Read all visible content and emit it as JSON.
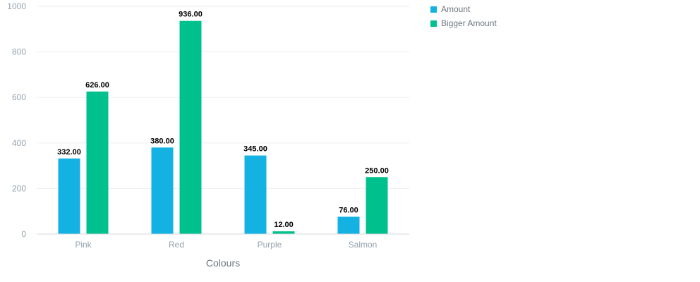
{
  "chart_data": {
    "type": "bar",
    "categories": [
      "Pink",
      "Red",
      "Purple",
      "Salmon"
    ],
    "series": [
      {
        "name": "Amount",
        "color": "#14b2e2",
        "values": [
          332,
          380,
          345,
          76
        ],
        "labels": [
          "332.00",
          "380.00",
          "345.00",
          "76.00"
        ]
      },
      {
        "name": "Bigger Amount",
        "color": "#00c18d",
        "values": [
          626,
          936,
          12,
          250
        ],
        "labels": [
          "626.00",
          "936.00",
          "12.00",
          "250.00"
        ]
      }
    ],
    "xlabel": "Colours",
    "ylabel": "",
    "ylim": [
      0,
      1000
    ],
    "yticks": [
      0,
      200,
      400,
      600,
      800,
      1000
    ],
    "grid": true,
    "legend_position": "top-right"
  }
}
